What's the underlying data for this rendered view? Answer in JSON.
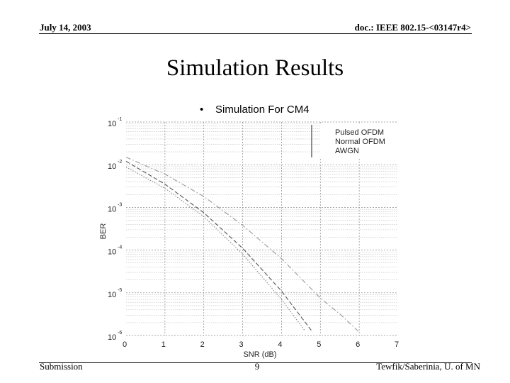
{
  "header": {
    "date": "July 14, 2003",
    "doc_id": "doc.: IEEE 802.15-<03147r4>"
  },
  "slide": {
    "title": "Simulation Results",
    "bullet": "•",
    "bullet_text": "Simulation For CM4"
  },
  "footer": {
    "left": "Submission",
    "page": "9",
    "right": "Tewfik/Saberinia, U. of MN"
  },
  "chart_data": {
    "type": "line",
    "xlabel": "SNR (dB)",
    "ylabel": "BER",
    "x_ticks": [
      "0",
      "1",
      "2",
      "3",
      "4",
      "5",
      "6",
      "7"
    ],
    "y_ticks": [
      {
        "base": "10",
        "exp": "-1"
      },
      {
        "base": "10",
        "exp": "-2"
      },
      {
        "base": "10",
        "exp": "-3"
      },
      {
        "base": "10",
        "exp": "-4"
      },
      {
        "base": "10",
        "exp": "-5"
      },
      {
        "base": "10",
        "exp": "-6"
      }
    ],
    "xlim": [
      0,
      7
    ],
    "ylim": [
      1e-06,
      0.1
    ],
    "yscale": "log",
    "grid": true,
    "legend_position": "top-right",
    "series": [
      {
        "name": "Pulsed OFDM",
        "style": "dashed",
        "color": "#555555",
        "x": [
          0,
          1,
          2,
          3,
          4,
          4.8
        ],
        "y": [
          0.012,
          0.0035,
          0.00075,
          0.00011,
          1.1e-05,
          1.2e-06
        ]
      },
      {
        "name": "Normal OFDM",
        "style": "dashdot",
        "color": "#999999",
        "x": [
          0,
          1,
          2,
          3,
          4,
          5,
          5.5,
          6.0
        ],
        "y": [
          0.015,
          0.006,
          0.0018,
          0.00038,
          6.3e-05,
          7.5e-06,
          3.2e-06,
          1.2e-06
        ]
      },
      {
        "name": "AWGN",
        "style": "dotted",
        "color": "#888888",
        "x": [
          0,
          1,
          2,
          3,
          4,
          4.6
        ],
        "y": [
          0.0088,
          0.0028,
          0.00061,
          8e-05,
          7e-06,
          1.3e-06
        ]
      }
    ]
  }
}
